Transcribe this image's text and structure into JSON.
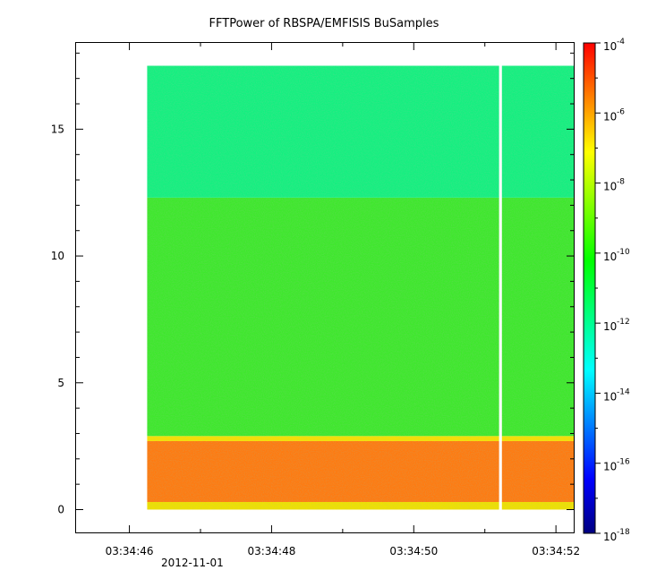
{
  "chart_data": {
    "type": "heatmap",
    "title": "FFTPower of RBSPA/EMFISIS  BuSamples",
    "xlabel": "",
    "ylabel": "",
    "x_range": [
      "03:34:45.25",
      "03:34:52.25"
    ],
    "x_data_extent": [
      "03:34:46.25",
      "03:34:52.25"
    ],
    "x_ticks": [
      "03:34:46",
      "03:34:48",
      "03:34:50",
      "03:34:52"
    ],
    "x_minor_step_seconds": 1,
    "date_label": "2012-11-01",
    "y_range": [
      -0.9,
      18.4
    ],
    "y_data_extent": [
      0.0,
      17.5
    ],
    "y_ticks": [
      "0",
      "5",
      "10",
      "15"
    ],
    "data_gap": {
      "start": "03:34:51.20",
      "end": "03:34:51.24"
    },
    "bands": [
      {
        "y": [
          0.0,
          0.3
        ],
        "color": "#f0e000"
      },
      {
        "y": [
          0.3,
          2.7
        ],
        "color": "#ff7a10"
      },
      {
        "y": [
          2.7,
          2.9
        ],
        "color": "#f8e000"
      },
      {
        "y": [
          2.9,
          12.3
        ],
        "color": "#3ee82c"
      },
      {
        "y": [
          12.3,
          17.5
        ],
        "color": "#14f080"
      }
    ],
    "colorbar": {
      "scale": "log",
      "range": [
        1e-18,
        0.0001
      ],
      "tick_labels": [
        "10",
        "10",
        "10",
        "10",
        "10",
        "10",
        "10",
        "10"
      ],
      "tick_exponents": [
        "-18",
        "-16",
        "-14",
        "-12",
        "-10",
        "-8",
        "-6",
        "-4"
      ],
      "colors": [
        "#000080",
        "#0000ff",
        "#0080ff",
        "#00ffff",
        "#00ff80",
        "#00ff00",
        "#80ff00",
        "#ffff00",
        "#ff8000",
        "#ff0000"
      ]
    },
    "grid": false
  }
}
